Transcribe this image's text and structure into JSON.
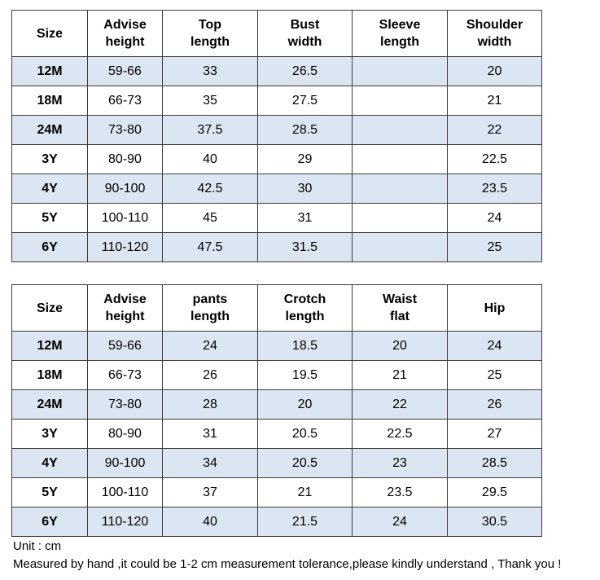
{
  "top_table": {
    "headers": [
      "Size",
      "Advise\nheight",
      "Top\nlength",
      "Bust\nwidth",
      "Sleeve\nlength",
      "Shoulder\nwidth"
    ],
    "rows": [
      [
        "12M",
        "59-66",
        "33",
        "26.5",
        "",
        "20"
      ],
      [
        "18M",
        "66-73",
        "35",
        "27.5",
        "",
        "21"
      ],
      [
        "24M",
        "73-80",
        "37.5",
        "28.5",
        "",
        "22"
      ],
      [
        "3Y",
        "80-90",
        "40",
        "29",
        "",
        "22.5"
      ],
      [
        "4Y",
        "90-100",
        "42.5",
        "30",
        "",
        "23.5"
      ],
      [
        "5Y",
        "100-110",
        "45",
        "31",
        "",
        "24"
      ],
      [
        "6Y",
        "110-120",
        "47.5",
        "31.5",
        "",
        "25"
      ]
    ]
  },
  "bottom_table": {
    "headers": [
      "Size",
      "Advise\nheight",
      "pants\nlength",
      "Crotch\nlength",
      "Waist\nflat",
      "Hip"
    ],
    "rows": [
      [
        "12M",
        "59-66",
        "24",
        "18.5",
        "20",
        "24"
      ],
      [
        "18M",
        "66-73",
        "26",
        "19.5",
        "21",
        "25"
      ],
      [
        "24M",
        "73-80",
        "28",
        "20",
        "22",
        "26"
      ],
      [
        "3Y",
        "80-90",
        "31",
        "20.5",
        "22.5",
        "27"
      ],
      [
        "4Y",
        "90-100",
        "34",
        "20.5",
        "23",
        "28.5"
      ],
      [
        "5Y",
        "100-110",
        "37",
        "21",
        "23.5",
        "29.5"
      ],
      [
        "6Y",
        "110-120",
        "40",
        "21.5",
        "24",
        "30.5"
      ]
    ]
  },
  "notes": {
    "unit": "Unit : cm",
    "tolerance": "Measured by hand ,it could be 1-2 cm measurement tolerance,please kindly understand , Thank you !"
  },
  "colors": {
    "shaded_row": "#dce6f2",
    "border": "#3a3a3a"
  }
}
